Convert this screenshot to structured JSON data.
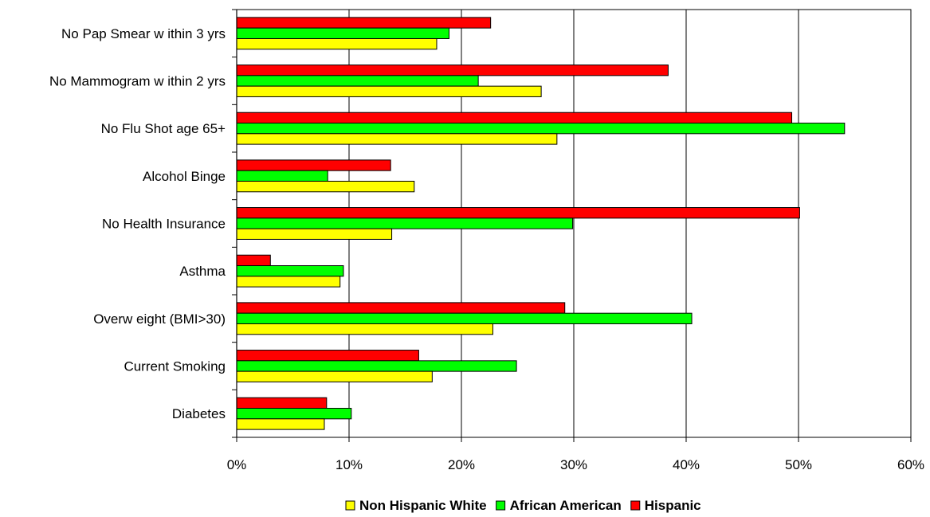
{
  "chart_data": {
    "type": "bar",
    "orientation": "horizontal",
    "categories": [
      "No Pap Smear w ithin 3 yrs",
      "No Mammogram w ithin 2 yrs",
      "No Flu Shot age 65+",
      "Alcohol Binge",
      "No Health Insurance",
      "Asthma",
      "Overw eight (BMI>30)",
      "Current Smoking",
      "Diabetes"
    ],
    "series": [
      {
        "name": "Non Hispanic White",
        "color": "#FFFF00",
        "values": [
          17.8,
          27.1,
          28.5,
          15.8,
          13.8,
          9.2,
          22.8,
          17.4,
          7.8
        ]
      },
      {
        "name": "African American",
        "color": "#00FF00",
        "values": [
          18.9,
          21.5,
          54.1,
          8.1,
          29.9,
          9.5,
          40.5,
          24.9,
          10.2
        ]
      },
      {
        "name": "Hispanic",
        "color": "#FF0000",
        "values": [
          22.6,
          38.4,
          49.4,
          13.7,
          50.1,
          3.0,
          29.2,
          16.2,
          8.0
        ]
      }
    ],
    "x_ticks": [
      "0%",
      "10%",
      "20%",
      "30%",
      "40%",
      "50%",
      "60%"
    ],
    "xlim": [
      0,
      60
    ],
    "grid": "vertical major gridlines",
    "legend_position": "bottom"
  }
}
